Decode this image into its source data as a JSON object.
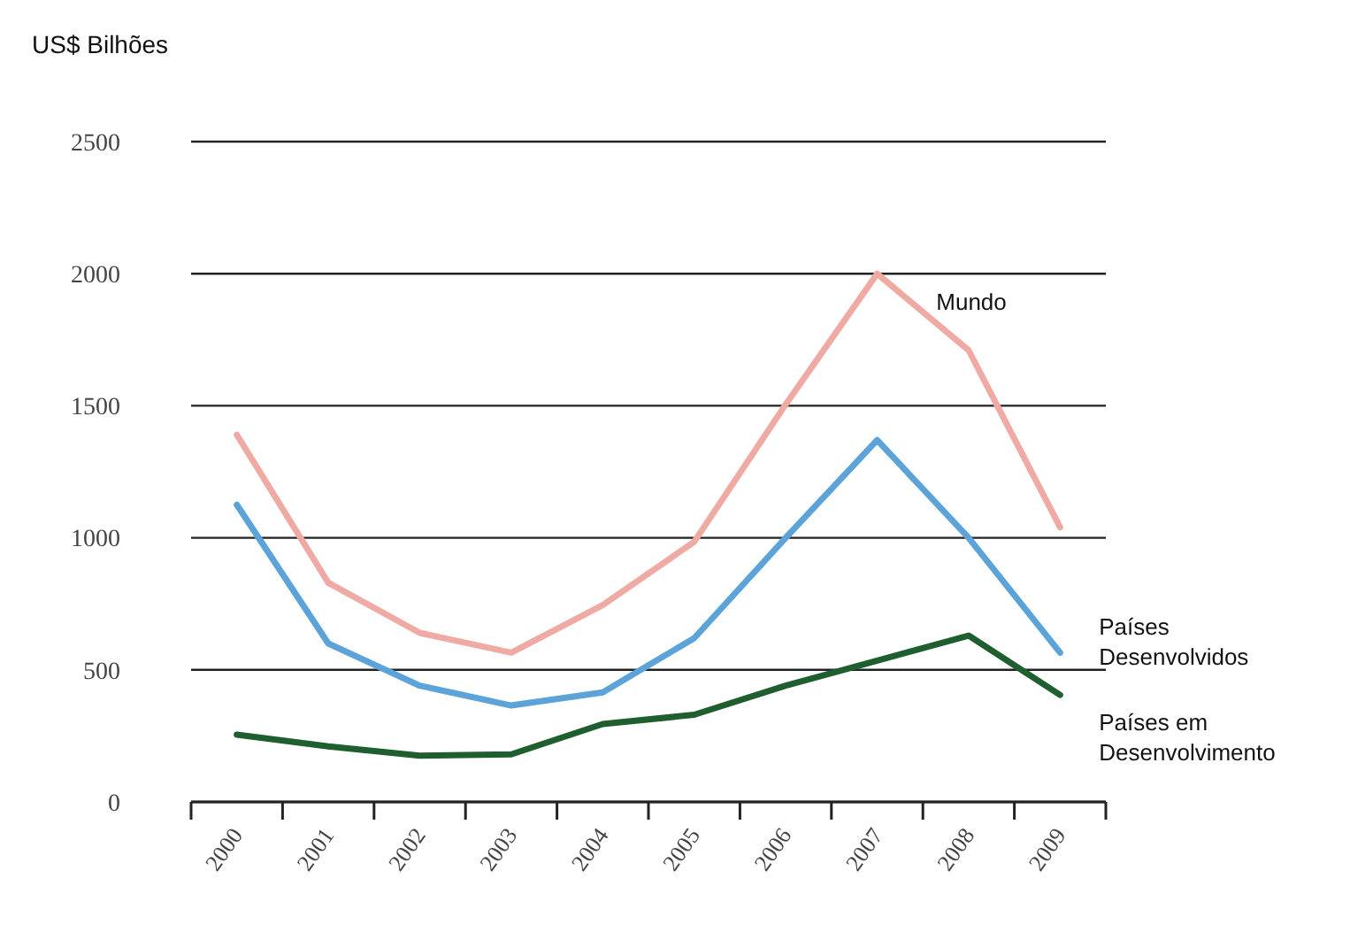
{
  "chart_data": {
    "type": "line",
    "ylabel": "US$ Bilhões",
    "categories": [
      "2000",
      "2001",
      "2002",
      "2003",
      "2004",
      "2005",
      "2006",
      "2007",
      "2008",
      "2009"
    ],
    "ylim": [
      0,
      2500
    ],
    "yticks": [
      0,
      500,
      1000,
      1500,
      2000,
      2500
    ],
    "grid": "y",
    "legend": false,
    "line_style": "solid",
    "series": [
      {
        "name": "Mundo",
        "color": "#f0aaa4",
        "values": [
          1390,
          830,
          640,
          565,
          745,
          985,
          1505,
          2000,
          1710,
          1040
        ]
      },
      {
        "name": "Países Desenvolvidos",
        "color": "#5ba3d8",
        "values": [
          1125,
          600,
          440,
          365,
          415,
          620,
          1000,
          1370,
          1000,
          565
        ]
      },
      {
        "name": "Países em Desenvolvimento",
        "color": "#1f5e2e",
        "values": [
          255,
          210,
          175,
          180,
          295,
          330,
          440,
          535,
          630,
          405
        ]
      }
    ]
  }
}
